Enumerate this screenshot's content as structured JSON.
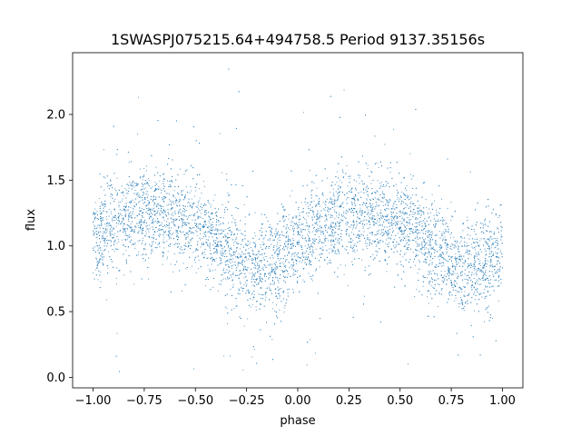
{
  "chart_data": {
    "type": "scatter",
    "title": "1SWASPJ075215.64+494758.5 Period 9137.35156s",
    "xlabel": "phase",
    "ylabel": "flux",
    "xlim": [
      -1.1,
      1.1
    ],
    "ylim": [
      -0.08,
      2.47
    ],
    "xticks": [
      -1.0,
      -0.75,
      -0.5,
      -0.25,
      0.0,
      0.25,
      0.5,
      0.75,
      1.0
    ],
    "xtick_labels": [
      "−1.00",
      "−0.75",
      "−0.50",
      "−0.25",
      "0.00",
      "0.25",
      "0.50",
      "0.75",
      "1.00"
    ],
    "yticks": [
      0.0,
      0.5,
      1.0,
      1.5,
      2.0
    ],
    "ytick_labels": [
      "0.0",
      "0.5",
      "1.0",
      "1.5",
      "2.0"
    ],
    "grid": false,
    "point_color": "#1f77b4",
    "series": [
      {
        "x": [
          -1.0,
          -0.9,
          -0.8,
          -0.7,
          -0.6,
          -0.5,
          -0.4,
          -0.3,
          -0.2,
          -0.1,
          0.0,
          0.1,
          0.2,
          0.3,
          0.4,
          0.5,
          0.6,
          0.7,
          0.8,
          0.9,
          1.0
        ],
        "y": [
          1.05,
          1.18,
          1.24,
          1.25,
          1.22,
          1.15,
          1.05,
          0.9,
          0.82,
          0.88,
          1.0,
          1.13,
          1.22,
          1.25,
          1.23,
          1.17,
          1.07,
          0.92,
          0.82,
          0.87,
          1.0
        ],
        "spread": 0.17
      }
    ]
  }
}
